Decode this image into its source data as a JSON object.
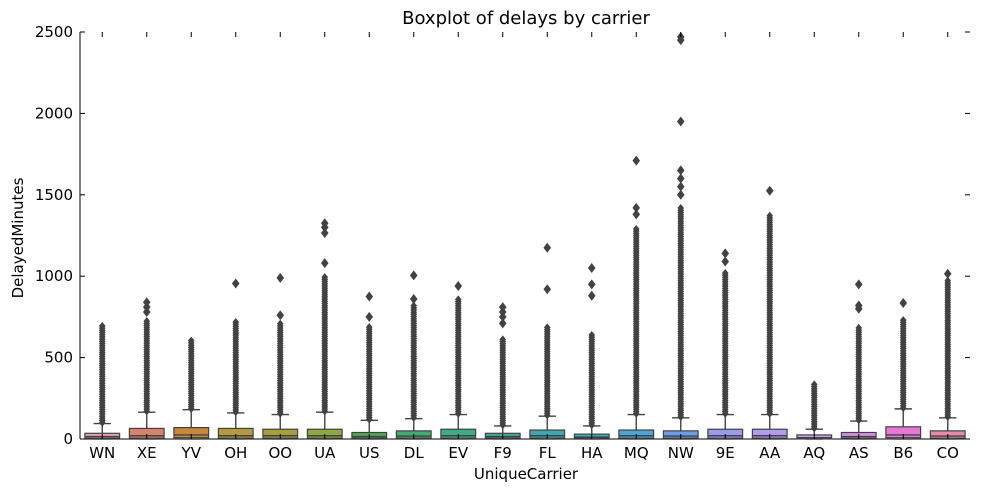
{
  "chart_data": {
    "type": "box",
    "title": "Boxplot of delays by carrier",
    "xlabel": "UniqueCarrier",
    "ylabel": "DelayedMinutes",
    "ylim": [
      0,
      2500
    ],
    "yticks": [
      0,
      500,
      1000,
      1500,
      2000,
      2500
    ],
    "grid": false,
    "legend": "none",
    "categories": [
      "WN",
      "XE",
      "YV",
      "OH",
      "OO",
      "UA",
      "US",
      "DL",
      "EV",
      "F9",
      "FL",
      "HA",
      "MQ",
      "NW",
      "9E",
      "AA",
      "AQ",
      "AS",
      "B6",
      "CO"
    ],
    "box_colors": [
      "#e8a0b4",
      "#d9826e",
      "#c8893a",
      "#b59a3f",
      "#a8a040",
      "#8ea843",
      "#4caa55",
      "#44ab72",
      "#3fab8c",
      "#40aa9f",
      "#3ca8b0",
      "#3cabc4",
      "#4aa6d6",
      "#6a9ee8",
      "#9a9af0",
      "#b39cf0",
      "#c9a2ef",
      "#d98ee8",
      "#e878d6",
      "#e88aae"
    ],
    "series": [
      {
        "category": "WN",
        "q1": 5,
        "median": 15,
        "q3": 35,
        "whisker_low": 0,
        "whisker_high": 95,
        "outlier_min": 100,
        "outlier_max": 700,
        "sparse_outliers": []
      },
      {
        "category": "XE",
        "q1": 5,
        "median": 20,
        "q3": 65,
        "whisker_low": 0,
        "whisker_high": 165,
        "outlier_min": 170,
        "outlier_max": 730,
        "sparse_outliers": [
          780,
          810,
          840
        ]
      },
      {
        "category": "YV",
        "q1": 8,
        "median": 25,
        "q3": 70,
        "whisker_low": 0,
        "whisker_high": 180,
        "outlier_min": 185,
        "outlier_max": 610,
        "sparse_outliers": []
      },
      {
        "category": "OH",
        "q1": 5,
        "median": 20,
        "q3": 65,
        "whisker_low": 0,
        "whisker_high": 160,
        "outlier_min": 165,
        "outlier_max": 720,
        "sparse_outliers": [
          955
        ]
      },
      {
        "category": "OO",
        "q1": 5,
        "median": 20,
        "q3": 60,
        "whisker_low": 0,
        "whisker_high": 150,
        "outlier_min": 155,
        "outlier_max": 720,
        "sparse_outliers": [
          760,
          990
        ]
      },
      {
        "category": "UA",
        "q1": 5,
        "median": 20,
        "q3": 60,
        "whisker_low": 0,
        "whisker_high": 165,
        "outlier_min": 170,
        "outlier_max": 1000,
        "sparse_outliers": [
          1080,
          1265,
          1300,
          1325
        ]
      },
      {
        "category": "US",
        "q1": 5,
        "median": 15,
        "q3": 40,
        "whisker_low": 0,
        "whisker_high": 115,
        "outlier_min": 120,
        "outlier_max": 700,
        "sparse_outliers": [
          750,
          875
        ]
      },
      {
        "category": "DL",
        "q1": 5,
        "median": 18,
        "q3": 50,
        "whisker_low": 0,
        "whisker_high": 125,
        "outlier_min": 130,
        "outlier_max": 820,
        "sparse_outliers": [
          860,
          1005
        ]
      },
      {
        "category": "EV",
        "q1": 5,
        "median": 20,
        "q3": 60,
        "whisker_low": 0,
        "whisker_high": 150,
        "outlier_min": 155,
        "outlier_max": 860,
        "sparse_outliers": [
          940
        ]
      },
      {
        "category": "F9",
        "q1": 5,
        "median": 15,
        "q3": 35,
        "whisker_low": 0,
        "whisker_high": 80,
        "outlier_min": 85,
        "outlier_max": 620,
        "sparse_outliers": [
          710,
          750,
          780,
          810
        ]
      },
      {
        "category": "FL",
        "q1": 5,
        "median": 20,
        "q3": 55,
        "whisker_low": 0,
        "whisker_high": 140,
        "outlier_min": 145,
        "outlier_max": 690,
        "sparse_outliers": [
          920,
          1175
        ]
      },
      {
        "category": "HA",
        "q1": 5,
        "median": 12,
        "q3": 30,
        "whisker_low": 0,
        "whisker_high": 80,
        "outlier_min": 85,
        "outlier_max": 650,
        "sparse_outliers": [
          880,
          950,
          1050
        ]
      },
      {
        "category": "MQ",
        "q1": 5,
        "median": 20,
        "q3": 55,
        "whisker_low": 0,
        "whisker_high": 150,
        "outlier_min": 155,
        "outlier_max": 1300,
        "sparse_outliers": [
          1380,
          1420,
          1710
        ]
      },
      {
        "category": "NW",
        "q1": 5,
        "median": 18,
        "q3": 50,
        "whisker_low": 0,
        "whisker_high": 130,
        "outlier_min": 135,
        "outlier_max": 1420,
        "sparse_outliers": [
          1500,
          1550,
          1600,
          1650,
          1950,
          2450,
          2470
        ]
      },
      {
        "category": "9E",
        "q1": 5,
        "median": 20,
        "q3": 60,
        "whisker_low": 0,
        "whisker_high": 150,
        "outlier_min": 155,
        "outlier_max": 1020,
        "sparse_outliers": [
          1090,
          1140
        ]
      },
      {
        "category": "AA",
        "q1": 5,
        "median": 20,
        "q3": 60,
        "whisker_low": 0,
        "whisker_high": 150,
        "outlier_min": 155,
        "outlier_max": 1380,
        "sparse_outliers": [
          1525
        ]
      },
      {
        "category": "AQ",
        "q1": 2,
        "median": 8,
        "q3": 25,
        "whisker_low": 0,
        "whisker_high": 60,
        "outlier_min": 65,
        "outlier_max": 340,
        "sparse_outliers": []
      },
      {
        "category": "AS",
        "q1": 5,
        "median": 15,
        "q3": 40,
        "whisker_low": 0,
        "whisker_high": 110,
        "outlier_min": 115,
        "outlier_max": 690,
        "sparse_outliers": [
          800,
          820,
          950
        ]
      },
      {
        "category": "B6",
        "q1": 8,
        "median": 25,
        "q3": 75,
        "whisker_low": 0,
        "whisker_high": 185,
        "outlier_min": 190,
        "outlier_max": 740,
        "sparse_outliers": [
          835
        ]
      },
      {
        "category": "CO",
        "q1": 5,
        "median": 18,
        "q3": 50,
        "whisker_low": 0,
        "whisker_high": 130,
        "outlier_min": 135,
        "outlier_max": 980,
        "sparse_outliers": [
          1015
        ]
      }
    ]
  }
}
